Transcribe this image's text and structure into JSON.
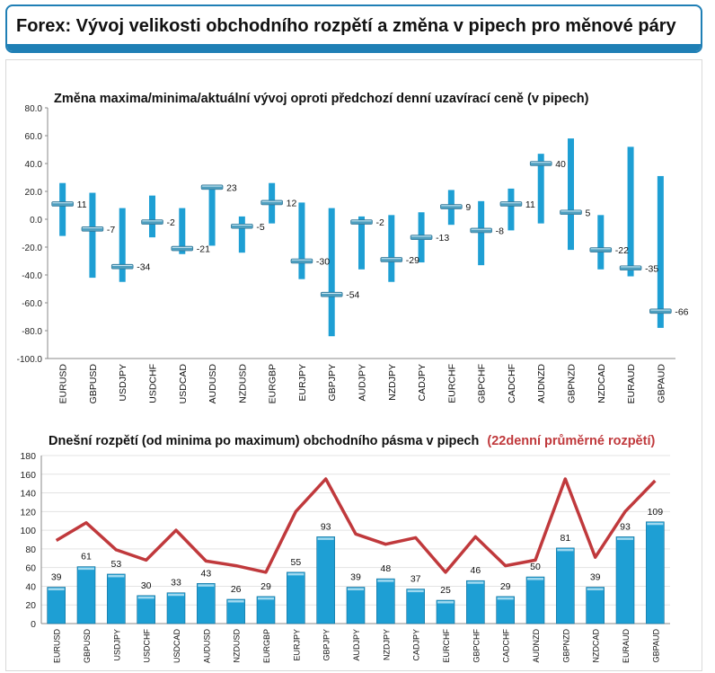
{
  "page": {
    "title": "Forex: Vývoj velikosti obchodního rozpětí a změna v pipech pro měnové páry"
  },
  "chart_data": [
    {
      "type": "range-bar",
      "title": "Změna maxima/minima/aktuální vývoj oproti předchozí denní uzavírací ceně (v pipech)",
      "categories": [
        "EURUSD",
        "GBPUSD",
        "USDJPY",
        "USDCHF",
        "USDCAD",
        "AUDUSD",
        "NZDUSD",
        "EURGBP",
        "EURJPY",
        "GBPJPY",
        "AUDJPY",
        "NZDJPY",
        "CADJPY",
        "EURCHF",
        "GBPCHF",
        "CADCHF",
        "AUDNZD",
        "GBPNZD",
        "NZDCAD",
        "EURAUD",
        "GBPAUD"
      ],
      "high": [
        26,
        19,
        8,
        17,
        8,
        24,
        2,
        26,
        12,
        8,
        2,
        3,
        5,
        21,
        13,
        22,
        47,
        58,
        3,
        52,
        31
      ],
      "low": [
        -12,
        -42,
        -45,
        -13,
        -25,
        -19,
        -24,
        -3,
        -43,
        -84,
        -36,
        -45,
        -31,
        -4,
        -33,
        -8,
        -3,
        -22,
        -36,
        -41,
        -78
      ],
      "current": [
        11,
        -7,
        -34,
        -2,
        -21,
        23,
        -5,
        12,
        -30,
        -54,
        -2,
        -29,
        -13,
        9,
        -8,
        11,
        40,
        5,
        -22,
        -35,
        -66
      ],
      "current_labels": [
        "11",
        "-7",
        "-34",
        "-2",
        "-21",
        "23",
        "-5",
        "12",
        "-30",
        "-54",
        "-2",
        "-29",
        "-13",
        "9",
        "-8",
        "11",
        "40",
        "5",
        "-22",
        "-35",
        "-66"
      ],
      "ylim": [
        -100,
        80
      ],
      "yticks": [
        "80.0",
        "60.0",
        "40.0",
        "20.0",
        "0.0",
        "-20.0",
        "-40.0",
        "-60.0",
        "-80.0",
        "-100.0"
      ],
      "bar_color": "#1e9fd4",
      "marker_color": "#4f9fbf"
    },
    {
      "type": "bar+line",
      "title": "Dnešní rozpětí (od minima po maximum) obchodního pásma v pipech",
      "title_highlight": "(22denní průměrné rozpětí)",
      "categories": [
        "EURUSD",
        "GBPUSD",
        "USDJPY",
        "USDCHF",
        "USDCAD",
        "AUDUSD",
        "NZDUSD",
        "EURGBP",
        "EURJPY",
        "GBPJPY",
        "AUDJPY",
        "NZDJPY",
        "CADJPY",
        "EURCHF",
        "GBPCHF",
        "CADCHF",
        "AUDNZD",
        "GBPNZD",
        "NZDCAD",
        "EURAUD",
        "GBPAUD"
      ],
      "values": [
        39,
        61,
        53,
        30,
        33,
        43,
        26,
        29,
        55,
        93,
        39,
        48,
        37,
        25,
        46,
        29,
        50,
        81,
        39,
        93,
        109
      ],
      "value_labels": [
        "39",
        "61",
        "53",
        "30",
        "33",
        "43",
        "26",
        "29",
        "55",
        "93",
        "39",
        "48",
        "37",
        "25",
        "46",
        "29",
        "50",
        "81",
        "39",
        "93",
        "109"
      ],
      "average": [
        89,
        108,
        79,
        68,
        100,
        67,
        62,
        55,
        120,
        155,
        96,
        85,
        92,
        55,
        93,
        62,
        68,
        155,
        71,
        120,
        153
      ],
      "ylim": [
        0,
        180
      ],
      "yticks": [
        "0",
        "20",
        "40",
        "60",
        "80",
        "100",
        "120",
        "140",
        "160",
        "180"
      ],
      "bar_color": "#1e9fd4",
      "line_color": "#c0393c",
      "highlight_color": "#c0393c"
    }
  ]
}
